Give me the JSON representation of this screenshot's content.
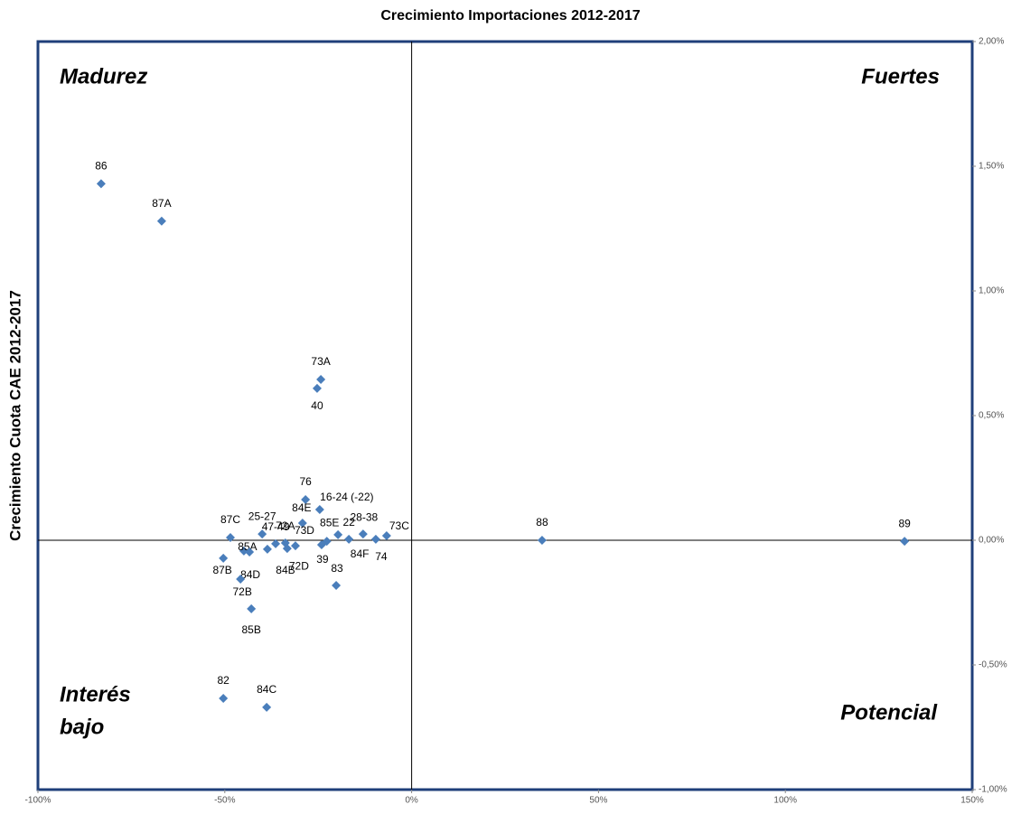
{
  "chart_data": {
    "type": "scatter",
    "title": "Crecimiento Importaciones 2012-2017",
    "y_label": "Crecimiento Cuota  CAE 2012-2017",
    "quadrant_labels": {
      "top_left": "Madurez",
      "top_right": "Fuertes",
      "bottom_left": [
        "Interés",
        "bajo"
      ],
      "bottom_right": "Potencial"
    },
    "color": "#4a7ebb",
    "point_labels": [
      "86",
      "87A",
      "73A",
      "40",
      "76",
      "16-24 (-22)",
      "84E",
      "87C",
      "25-27",
      "47-49",
      "72A",
      "73D",
      "72D",
      "84B",
      "85A",
      "84D",
      "87B",
      "72B",
      "85B",
      "82",
      "84C",
      "85E",
      "39",
      "22",
      "84F",
      "83",
      "28-38",
      "74",
      "73C",
      "88",
      "89"
    ],
    "x": [
      -83.1,
      -66.9,
      -24.3,
      -25.3,
      -28.4,
      -24.6,
      -29.2,
      -48.5,
      -40.0,
      -36.4,
      -33.8,
      -31.1,
      -33.3,
      -38.6,
      -44.9,
      -43.4,
      -50.4,
      -45.8,
      -42.9,
      -50.4,
      -38.8,
      -22.7,
      -24.1,
      -19.7,
      -16.8,
      -20.2,
      -13.0,
      -9.6,
      -6.7,
      34.9,
      131.9
    ],
    "values": [
      1.43,
      1.28,
      0.645,
      0.609,
      0.163,
      0.123,
      0.069,
      0.011,
      0.025,
      -0.014,
      -0.011,
      -0.022,
      -0.033,
      -0.036,
      -0.043,
      -0.047,
      -0.072,
      -0.156,
      -0.275,
      -0.634,
      -0.67,
      -0.004,
      -0.018,
      0.022,
      0.004,
      -0.181,
      0.025,
      0.004,
      0.018,
      0.0,
      -0.004
    ],
    "xlim": [
      -100,
      150
    ],
    "xticks": [
      {
        "value": -100,
        "label": "-100%"
      },
      {
        "value": -50,
        "label": "-50%"
      },
      {
        "value": 0,
        "label": "0%"
      },
      {
        "value": 50,
        "label": "50%"
      },
      {
        "value": 100,
        "label": "100%"
      },
      {
        "value": 150,
        "label": "150%"
      }
    ],
    "ylim": [
      -1,
      2
    ],
    "yticks": [
      {
        "value": -1,
        "label": "-1,00%"
      },
      {
        "value": -0.5,
        "label": "-0,50%"
      },
      {
        "value": 0,
        "label": "0,00%"
      },
      {
        "value": 0.5,
        "label": "0,50%"
      },
      {
        "value": 1,
        "label": "1,00%"
      },
      {
        "value": 1.5,
        "label": "1,50%"
      },
      {
        "value": 2,
        "label": "2,00%"
      }
    ]
  }
}
